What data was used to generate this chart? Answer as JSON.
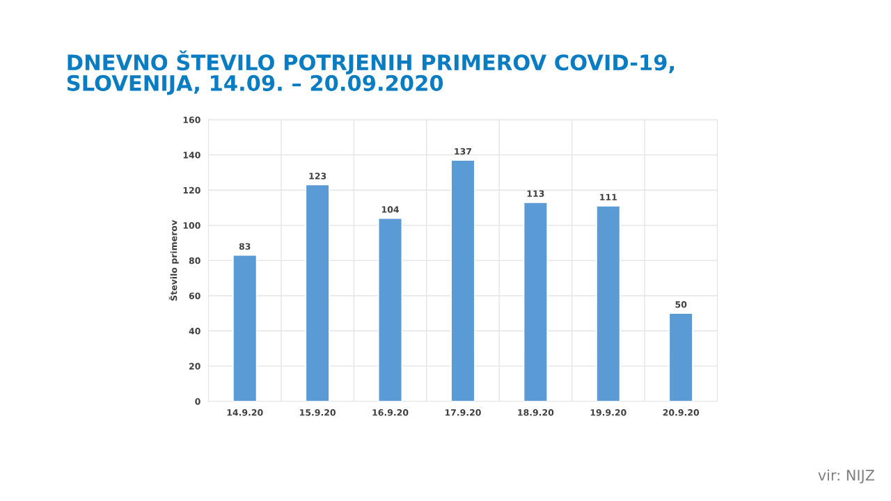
{
  "chart_data": {
    "type": "bar",
    "title": "DNEVNO ŠTEVILO POTRJENIH PRIMEROV COVID-19,\nSLOVENIJA, 14.09. – 20.09.2020",
    "ylabel": "Število primerov",
    "categories": [
      "14.9.20",
      "15.9.20",
      "16.9.20",
      "17.9.20",
      "18.9.20",
      "19.9.20",
      "20.9.20"
    ],
    "values": [
      83,
      123,
      104,
      137,
      113,
      111,
      50
    ],
    "color": "#5b9bd5",
    "ylim": [
      0,
      160
    ],
    "yticks": [
      0,
      20,
      40,
      60,
      80,
      100,
      120,
      140,
      160
    ],
    "grid": true,
    "data_labels": true,
    "annotations": [
      "vir: NIJZ"
    ]
  }
}
